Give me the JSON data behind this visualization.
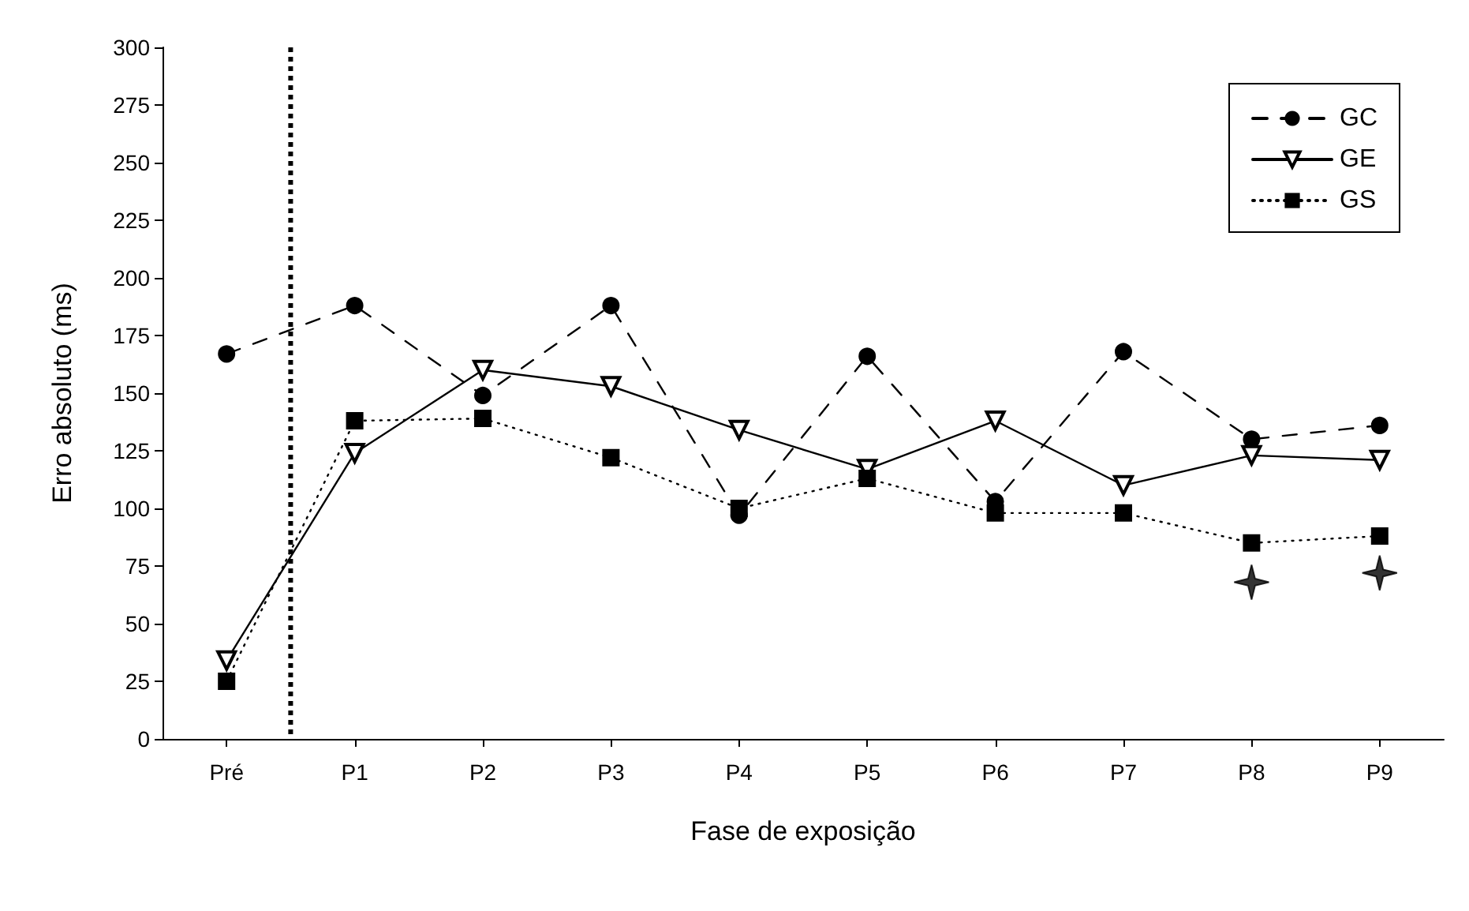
{
  "chart_data": {
    "type": "line",
    "xlabel": "Fase de exposição",
    "ylabel": "Erro absoluto (ms)",
    "categories": [
      "Pré",
      "P1",
      "P2",
      "P3",
      "P4",
      "P5",
      "P6",
      "P7",
      "P8",
      "P9"
    ],
    "series": [
      {
        "name": "GC",
        "color": "#000000",
        "marker": "circle",
        "line_style": "dashed",
        "values": [
          167,
          188,
          149,
          188,
          97,
          166,
          103,
          168,
          130,
          136
        ]
      },
      {
        "name": "GE",
        "color": "#000000",
        "marker": "triangle",
        "line_style": "solid",
        "values": [
          34,
          124,
          160,
          153,
          134,
          117,
          138,
          110,
          123,
          121
        ]
      },
      {
        "name": "GS",
        "color": "#000000",
        "marker": "square",
        "line_style": "dotted",
        "values": [
          25,
          138,
          139,
          122,
          100,
          113,
          98,
          98,
          85,
          88
        ]
      },
      {
        "type": "scatter",
        "color": "#000000",
        "marker": "star",
        "x": [
          "P8",
          "P9"
        ],
        "values": [
          68,
          72
        ]
      }
    ],
    "ylim": [
      0,
      300
    ],
    "yticks": [
      0,
      25,
      50,
      75,
      100,
      125,
      150,
      175,
      200,
      225,
      250,
      275,
      300
    ],
    "grid": false,
    "legend": "top right"
  }
}
